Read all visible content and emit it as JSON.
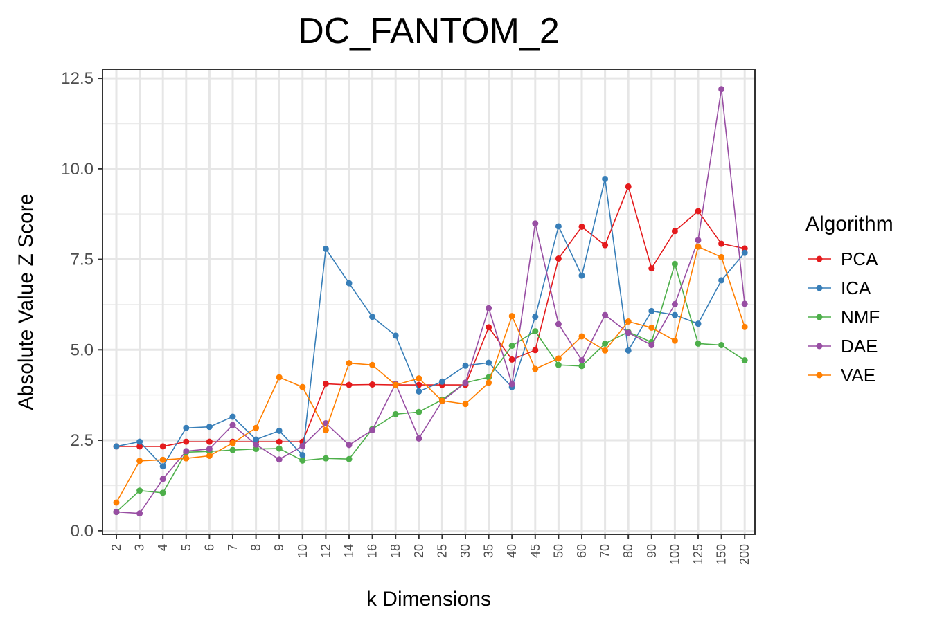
{
  "chart_data": {
    "type": "line",
    "title": "DC_FANTOM_2",
    "xlabel": "k Dimensions",
    "ylabel": "Absolute Value Z Score",
    "categories": [
      "2",
      "3",
      "4",
      "5",
      "6",
      "7",
      "8",
      "9",
      "10",
      "12",
      "14",
      "16",
      "18",
      "20",
      "25",
      "30",
      "35",
      "40",
      "45",
      "50",
      "60",
      "70",
      "80",
      "90",
      "100",
      "125",
      "150",
      "200"
    ],
    "ylim": [
      -0.1,
      12.75
    ],
    "yticks": [
      0.0,
      2.5,
      5.0,
      7.5,
      10.0,
      12.5
    ],
    "ytick_labels": [
      "0.0",
      "2.5",
      "5.0",
      "7.5",
      "10.0",
      "12.5"
    ],
    "grid": true,
    "legend": {
      "title": "Algorithm",
      "position": "right"
    },
    "series": [
      {
        "name": "PCA",
        "color": "#e41a1c",
        "values": [
          2.33,
          2.33,
          2.33,
          2.46,
          2.46,
          2.46,
          2.46,
          2.46,
          2.46,
          4.06,
          4.03,
          4.04,
          4.03,
          4.03,
          4.03,
          4.03,
          5.62,
          4.73,
          4.99,
          7.52,
          8.4,
          7.89,
          9.51,
          7.25,
          8.28,
          8.83,
          7.93,
          7.8
        ]
      },
      {
        "name": "ICA",
        "color": "#377eb8",
        "values": [
          2.33,
          2.46,
          1.78,
          2.84,
          2.87,
          3.15,
          2.52,
          2.76,
          2.09,
          7.79,
          6.84,
          5.91,
          5.39,
          3.85,
          4.12,
          4.56,
          4.64,
          3.97,
          5.91,
          8.41,
          7.05,
          9.72,
          4.98,
          6.07,
          5.96,
          5.72,
          6.92,
          7.68
        ]
      },
      {
        "name": "NMF",
        "color": "#4daf4a",
        "values": [
          0.52,
          1.11,
          1.05,
          2.17,
          2.19,
          2.23,
          2.26,
          2.27,
          1.94,
          2.0,
          1.98,
          2.81,
          3.22,
          3.28,
          3.62,
          4.09,
          4.24,
          5.11,
          5.51,
          4.58,
          4.55,
          5.17,
          5.49,
          5.21,
          7.37,
          5.17,
          5.13,
          4.71
        ]
      },
      {
        "name": "DAE",
        "color": "#984ea3",
        "values": [
          0.52,
          0.48,
          1.43,
          2.2,
          2.26,
          2.92,
          2.38,
          1.97,
          2.34,
          2.97,
          2.37,
          2.78,
          4.06,
          2.55,
          3.58,
          4.09,
          6.15,
          4.05,
          8.49,
          5.71,
          4.71,
          5.96,
          5.47,
          5.13,
          6.26,
          8.03,
          12.2,
          6.27
        ]
      },
      {
        "name": "VAE",
        "color": "#ff7f00",
        "values": [
          0.78,
          1.93,
          1.96,
          2.0,
          2.07,
          2.42,
          2.84,
          4.24,
          3.97,
          2.78,
          4.63,
          4.58,
          4.03,
          4.21,
          3.59,
          3.5,
          4.09,
          5.93,
          4.47,
          4.76,
          5.37,
          4.98,
          5.78,
          5.61,
          5.25,
          7.85,
          7.56,
          5.63
        ]
      }
    ]
  }
}
